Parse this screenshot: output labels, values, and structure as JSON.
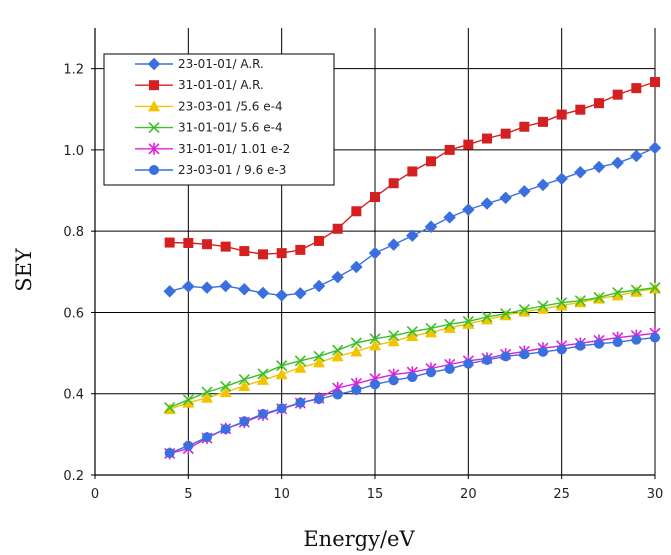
{
  "chart_data": {
    "type": "line",
    "title": "",
    "xlabel": "Energy/eV",
    "ylabel": "SEY",
    "xlim": [
      0,
      30
    ],
    "ylim": [
      0.2,
      1.3
    ],
    "x_ticks": [
      0,
      5,
      10,
      15,
      20,
      25,
      30
    ],
    "y_ticks": [
      0.2,
      0.4,
      0.6,
      0.8,
      1.0,
      1.2
    ],
    "x_tick_labels": [
      "0",
      "5",
      "10",
      "15",
      "20",
      "25",
      "30"
    ],
    "y_tick_labels": [
      "0.2",
      "0.4",
      "0.6",
      "0.8",
      "1.0",
      "1.2"
    ],
    "grid": true,
    "legend_position": "top-left",
    "x": [
      4,
      5,
      6,
      7,
      8,
      9,
      10,
      11,
      12,
      13,
      14,
      15,
      16,
      17,
      18,
      19,
      20,
      21,
      22,
      23,
      24,
      25,
      26,
      27,
      28,
      29,
      30
    ],
    "series": [
      {
        "name": "23-01-01/ A.R.",
        "color": "#3b6fe0",
        "marker": "diamond",
        "values": [
          0.652,
          0.664,
          0.661,
          0.665,
          0.657,
          0.648,
          0.642,
          0.647,
          0.665,
          0.687,
          0.712,
          0.746,
          0.767,
          0.789,
          0.811,
          0.834,
          0.853,
          0.868,
          0.882,
          0.898,
          0.914,
          0.929,
          0.945,
          0.958,
          0.968,
          0.985,
          1.005
        ]
      },
      {
        "name": "31-01-01/ A.R.",
        "color": "#d42020",
        "marker": "square",
        "values": [
          0.772,
          0.771,
          0.768,
          0.762,
          0.751,
          0.743,
          0.746,
          0.754,
          0.776,
          0.806,
          0.849,
          0.884,
          0.918,
          0.947,
          0.972,
          1.0,
          1.013,
          1.028,
          1.04,
          1.057,
          1.069,
          1.087,
          1.099,
          1.115,
          1.136,
          1.152,
          1.167
        ]
      },
      {
        "name": "23-03-01 /5.6 e-4",
        "color": "#f2c400",
        "marker": "triangle",
        "values": [
          0.362,
          0.378,
          0.39,
          0.404,
          0.419,
          0.434,
          0.448,
          0.464,
          0.477,
          0.492,
          0.504,
          0.519,
          0.529,
          0.542,
          0.551,
          0.562,
          0.572,
          0.583,
          0.593,
          0.602,
          0.609,
          0.617,
          0.625,
          0.634,
          0.642,
          0.651,
          0.659
        ]
      },
      {
        "name": "31-01-01/ 5.6 e-4",
        "color": "#3cbf2a",
        "marker": "x",
        "values": [
          0.366,
          0.385,
          0.404,
          0.418,
          0.435,
          0.449,
          0.469,
          0.481,
          0.492,
          0.507,
          0.525,
          0.535,
          0.543,
          0.553,
          0.561,
          0.571,
          0.578,
          0.589,
          0.597,
          0.607,
          0.616,
          0.624,
          0.629,
          0.637,
          0.649,
          0.655,
          0.661
        ]
      },
      {
        "name": "31-01-01/ 1.01 e-2",
        "color": "#e020d8",
        "marker": "star",
        "values": [
          0.253,
          0.265,
          0.291,
          0.314,
          0.33,
          0.348,
          0.363,
          0.377,
          0.389,
          0.414,
          0.425,
          0.437,
          0.447,
          0.453,
          0.462,
          0.472,
          0.481,
          0.487,
          0.497,
          0.504,
          0.512,
          0.518,
          0.524,
          0.531,
          0.538,
          0.543,
          0.549
        ]
      },
      {
        "name": "23-03-01 / 9.6 e-3",
        "color": "#3b6fe0",
        "marker": "circle",
        "values": [
          0.254,
          0.272,
          0.293,
          0.313,
          0.332,
          0.35,
          0.364,
          0.378,
          0.387,
          0.398,
          0.409,
          0.423,
          0.433,
          0.441,
          0.453,
          0.461,
          0.474,
          0.483,
          0.492,
          0.497,
          0.503,
          0.509,
          0.518,
          0.523,
          0.527,
          0.533,
          0.538
        ]
      }
    ]
  }
}
